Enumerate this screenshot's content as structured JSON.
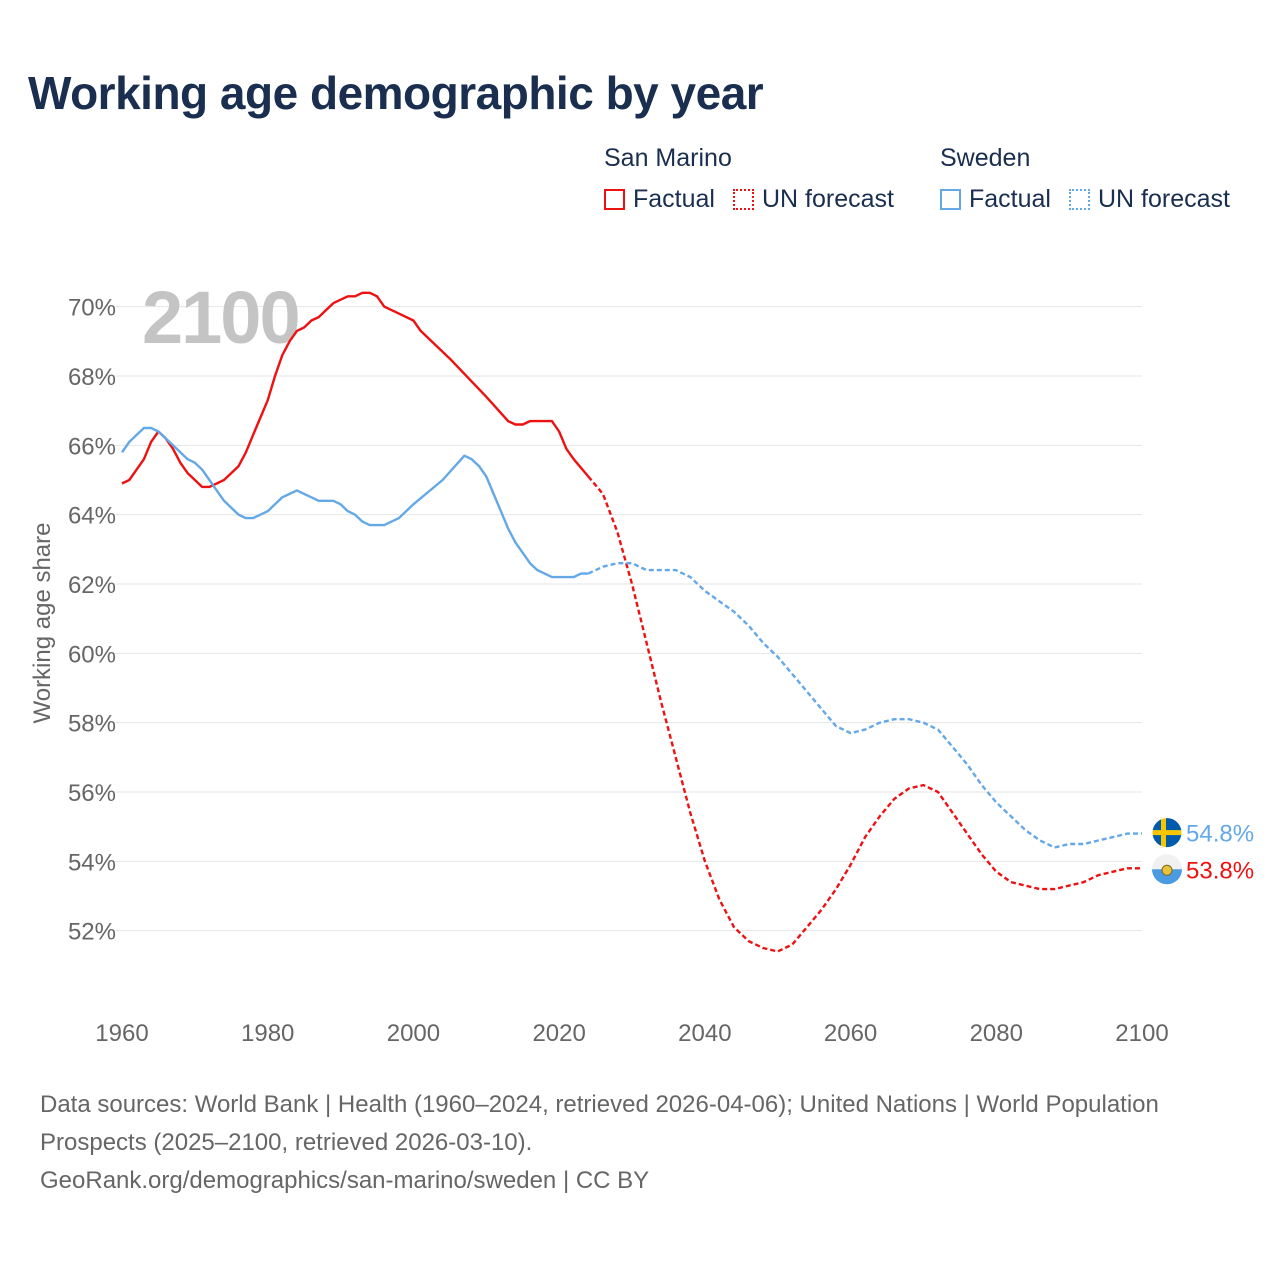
{
  "title": "Working age demographic by year",
  "legend": {
    "groups": [
      {
        "name": "San Marino",
        "color": "#ee1111",
        "factual_label": "Factual",
        "forecast_label": "UN forecast"
      },
      {
        "name": "Sweden",
        "color": "#64a8e8",
        "factual_label": "Factual",
        "forecast_label": "UN forecast"
      }
    ]
  },
  "chart_data": {
    "type": "line",
    "title": "Working age demographic by year",
    "year_label": "2100",
    "xlabel": "",
    "ylabel": "Working age share",
    "xlim": [
      1960,
      2100
    ],
    "ylim": [
      50,
      71
    ],
    "x_ticks": [
      "1960",
      "1980",
      "2000",
      "2020",
      "2040",
      "2060",
      "2080",
      "2100"
    ],
    "x_tick_values": [
      1960,
      1980,
      2000,
      2020,
      2040,
      2060,
      2080,
      2100
    ],
    "y_ticks": [
      "70%",
      "68%",
      "66%",
      "64%",
      "62%",
      "60%",
      "58%",
      "56%",
      "54%",
      "52%"
    ],
    "y_tick_values": [
      70,
      68,
      66,
      64,
      62,
      60,
      58,
      56,
      54,
      52
    ],
    "forecast_start": 2024,
    "series": [
      {
        "name": "San Marino",
        "color": "#ee1111",
        "end_label": "53.8%",
        "x": [
          1960,
          1961,
          1962,
          1963,
          1964,
          1965,
          1966,
          1967,
          1968,
          1969,
          1970,
          1971,
          1972,
          1973,
          1974,
          1975,
          1976,
          1977,
          1978,
          1979,
          1980,
          1981,
          1982,
          1983,
          1984,
          1985,
          1986,
          1987,
          1988,
          1989,
          1990,
          1991,
          1992,
          1993,
          1994,
          1995,
          1996,
          1998,
          2000,
          2001,
          2005,
          2010,
          2013,
          2014,
          2015,
          2016,
          2017,
          2018,
          2019,
          2020,
          2021,
          2022,
          2024,
          2026,
          2028,
          2030,
          2032,
          2034,
          2036,
          2038,
          2040,
          2042,
          2044,
          2046,
          2048,
          2050,
          2052,
          2054,
          2056,
          2058,
          2060,
          2062,
          2064,
          2066,
          2068,
          2070,
          2072,
          2074,
          2076,
          2078,
          2080,
          2082,
          2084,
          2086,
          2088,
          2090,
          2092,
          2094,
          2096,
          2098,
          2100
        ],
        "y": [
          64.9,
          65.0,
          65.3,
          65.6,
          66.1,
          66.4,
          66.2,
          65.9,
          65.5,
          65.2,
          65.0,
          64.8,
          64.8,
          64.9,
          65.0,
          65.2,
          65.4,
          65.8,
          66.3,
          66.8,
          67.3,
          68.0,
          68.6,
          69.0,
          69.3,
          69.4,
          69.6,
          69.7,
          69.9,
          70.1,
          70.2,
          70.3,
          70.3,
          70.4,
          70.4,
          70.3,
          70.0,
          69.8,
          69.6,
          69.3,
          68.5,
          67.4,
          66.7,
          66.6,
          66.6,
          66.7,
          66.7,
          66.7,
          66.7,
          66.4,
          65.9,
          65.6,
          65.1,
          64.6,
          63.5,
          62.0,
          60.3,
          58.6,
          57.0,
          55.4,
          54.0,
          52.9,
          52.1,
          51.7,
          51.5,
          51.4,
          51.6,
          52.1,
          52.6,
          53.2,
          53.9,
          54.7,
          55.3,
          55.8,
          56.1,
          56.2,
          56.0,
          55.4,
          54.8,
          54.2,
          53.7,
          53.4,
          53.3,
          53.2,
          53.2,
          53.3,
          53.4,
          53.6,
          53.7,
          53.8,
          53.8
        ]
      },
      {
        "name": "Sweden",
        "color": "#64a8e8",
        "end_label": "54.8%",
        "x": [
          1960,
          1961,
          1962,
          1963,
          1964,
          1965,
          1966,
          1967,
          1968,
          1969,
          1970,
          1971,
          1972,
          1973,
          1974,
          1975,
          1976,
          1977,
          1978,
          1979,
          1980,
          1981,
          1982,
          1983,
          1984,
          1985,
          1986,
          1987,
          1988,
          1989,
          1990,
          1991,
          1992,
          1993,
          1994,
          1995,
          1996,
          1997,
          1998,
          2000,
          2004,
          2007,
          2008,
          2009,
          2010,
          2011,
          2012,
          2013,
          2014,
          2015,
          2016,
          2017,
          2018,
          2019,
          2020,
          2021,
          2022,
          2023,
          2024,
          2026,
          2028,
          2030,
          2032,
          2034,
          2036,
          2038,
          2040,
          2042,
          2044,
          2046,
          2048,
          2050,
          2052,
          2054,
          2056,
          2058,
          2060,
          2062,
          2064,
          2066,
          2068,
          2070,
          2072,
          2074,
          2076,
          2078,
          2080,
          2082,
          2084,
          2086,
          2088,
          2090,
          2092,
          2094,
          2096,
          2098,
          2100
        ],
        "y": [
          65.8,
          66.1,
          66.3,
          66.5,
          66.5,
          66.4,
          66.2,
          66.0,
          65.8,
          65.6,
          65.5,
          65.3,
          65.0,
          64.7,
          64.4,
          64.2,
          64.0,
          63.9,
          63.9,
          64.0,
          64.1,
          64.3,
          64.5,
          64.6,
          64.7,
          64.6,
          64.5,
          64.4,
          64.4,
          64.4,
          64.3,
          64.1,
          64.0,
          63.8,
          63.7,
          63.7,
          63.7,
          63.8,
          63.9,
          64.3,
          65.0,
          65.7,
          65.6,
          65.4,
          65.1,
          64.6,
          64.1,
          63.6,
          63.2,
          62.9,
          62.6,
          62.4,
          62.3,
          62.2,
          62.2,
          62.2,
          62.2,
          62.3,
          62.3,
          62.5,
          62.6,
          62.6,
          62.4,
          62.4,
          62.4,
          62.2,
          61.8,
          61.5,
          61.2,
          60.8,
          60.3,
          59.9,
          59.4,
          58.9,
          58.4,
          57.9,
          57.7,
          57.8,
          58.0,
          58.1,
          58.1,
          58.0,
          57.8,
          57.3,
          56.8,
          56.2,
          55.7,
          55.3,
          54.9,
          54.6,
          54.4,
          54.5,
          54.5,
          54.6,
          54.7,
          54.8,
          54.8
        ]
      }
    ]
  },
  "footer": {
    "sources": "Data sources: World Bank | Health (1960–2024, retrieved 2026-04-06); United Nations | World Population Prospects (2025–2100, retrieved 2026-03-10).",
    "attribution": "GeoRank.org/demographics/san-marino/sweden | CC BY"
  }
}
